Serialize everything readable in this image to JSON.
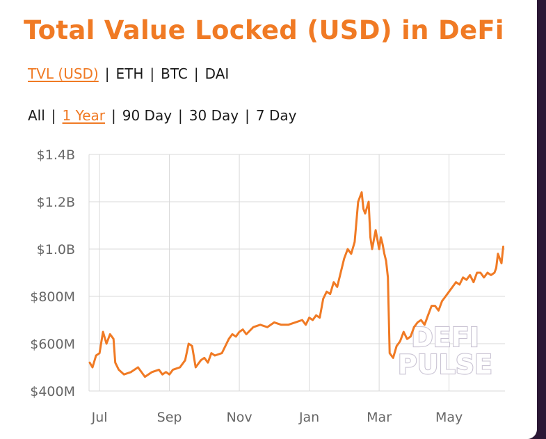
{
  "title": "Total Value Locked (USD) in DeFi",
  "metric_tabs": [
    {
      "label": "TVL (USD)",
      "active": true
    },
    {
      "label": "ETH",
      "active": false
    },
    {
      "label": "BTC",
      "active": false
    },
    {
      "label": "DAI",
      "active": false
    }
  ],
  "range_tabs": [
    {
      "label": "All",
      "active": false
    },
    {
      "label": "1 Year",
      "active": true
    },
    {
      "label": "90 Day",
      "active": false
    },
    {
      "label": "30 Day",
      "active": false
    },
    {
      "label": "7 Day",
      "active": false
    }
  ],
  "separator": "|",
  "watermark": [
    "DEFI",
    "PULSE"
  ],
  "colors": {
    "accent": "#f07a24",
    "line": "#f07a24",
    "grid": "#d9d9d9",
    "background": "#ffffff"
  },
  "chart_data": {
    "type": "line",
    "x_unit": "month index (0 = Jun 1)",
    "xlim": [
      0.7,
      12.6
    ],
    "ylim": [
      400,
      1400
    ],
    "y_ticks": [
      {
        "value": 400,
        "label": "$400M"
      },
      {
        "value": 600,
        "label": "$600M"
      },
      {
        "value": 800,
        "label": "$800M"
      },
      {
        "value": 1000,
        "label": "$1.0B"
      },
      {
        "value": 1200,
        "label": "$1.2B"
      },
      {
        "value": 1400,
        "label": "$1.4B"
      }
    ],
    "x_ticks": [
      {
        "value": 1,
        "label": "Jul"
      },
      {
        "value": 3,
        "label": "Sep"
      },
      {
        "value": 5,
        "label": "Nov"
      },
      {
        "value": 7,
        "label": "Jan"
      },
      {
        "value": 9,
        "label": "Mar"
      },
      {
        "value": 11,
        "label": "May"
      }
    ],
    "grid": true,
    "series": [
      {
        "x": [
          0.72,
          0.8,
          0.9,
          1.0,
          1.1,
          1.2,
          1.3,
          1.4,
          1.45,
          1.55,
          1.7,
          1.9,
          2.1,
          2.3,
          2.5,
          2.7,
          2.8,
          2.9,
          3.0,
          3.1,
          3.3,
          3.45,
          3.55,
          3.65,
          3.75,
          3.9,
          4.0,
          4.1,
          4.2,
          4.3,
          4.5,
          4.7,
          4.8,
          4.9,
          5.0,
          5.1,
          5.2,
          5.4,
          5.6,
          5.8,
          6.0,
          6.2,
          6.4,
          6.6,
          6.8,
          6.9,
          7.0,
          7.1,
          7.2,
          7.3,
          7.4,
          7.5,
          7.6,
          7.7,
          7.8,
          7.9,
          8.0,
          8.1,
          8.2,
          8.3,
          8.4,
          8.5,
          8.55,
          8.6,
          8.7,
          8.75,
          8.8,
          8.9,
          9.0,
          9.05,
          9.1,
          9.15,
          9.2,
          9.25,
          9.3,
          9.4,
          9.5,
          9.6,
          9.7,
          9.8,
          9.9,
          10.0,
          10.1,
          10.2,
          10.3,
          10.4,
          10.5,
          10.6,
          10.7,
          10.8,
          10.9,
          11.0,
          11.1,
          11.2,
          11.3,
          11.4,
          11.5,
          11.6,
          11.7,
          11.8,
          11.9,
          12.0,
          12.1,
          12.2,
          12.3,
          12.35,
          12.4,
          12.5,
          12.55
        ],
        "y": [
          520,
          500,
          550,
          560,
          650,
          600,
          640,
          620,
          520,
          490,
          470,
          480,
          500,
          460,
          480,
          490,
          470,
          480,
          470,
          490,
          500,
          530,
          600,
          590,
          500,
          530,
          540,
          520,
          560,
          550,
          560,
          620,
          640,
          630,
          650,
          660,
          640,
          670,
          680,
          670,
          690,
          680,
          680,
          690,
          700,
          680,
          710,
          700,
          720,
          710,
          790,
          820,
          810,
          860,
          840,
          900,
          960,
          1000,
          980,
          1030,
          1200,
          1240,
          1170,
          1150,
          1200,
          1050,
          1000,
          1080,
          1000,
          1050,
          1020,
          980,
          950,
          880,
          560,
          540,
          590,
          610,
          650,
          620,
          630,
          670,
          690,
          700,
          680,
          720,
          760,
          760,
          740,
          780,
          800,
          820,
          840,
          860,
          850,
          880,
          870,
          890,
          860,
          900,
          900,
          880,
          900,
          890,
          900,
          920,
          980,
          940,
          1010
        ]
      }
    ]
  }
}
